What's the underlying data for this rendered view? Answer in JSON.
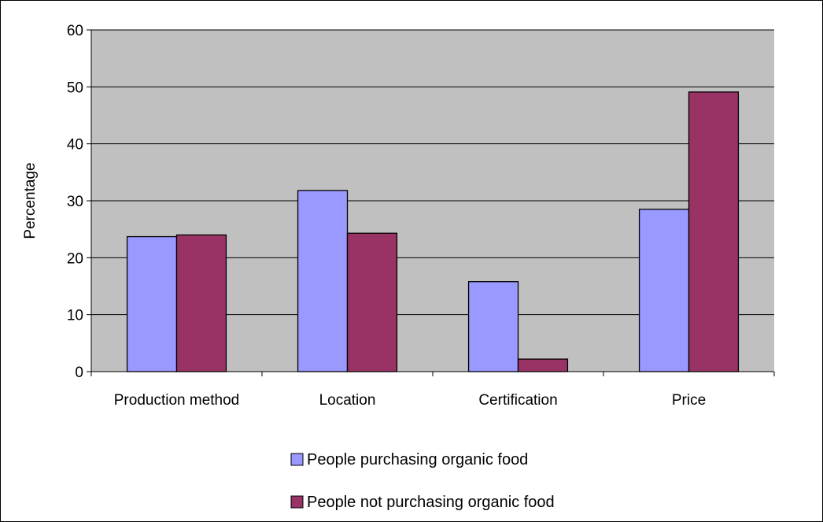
{
  "chart_data": {
    "type": "bar",
    "title": "",
    "xlabel": "",
    "ylabel": "Percentage",
    "ylim": [
      0,
      60
    ],
    "yticks": [
      0,
      10,
      20,
      30,
      40,
      50,
      60
    ],
    "grid": true,
    "legend_position": "bottom",
    "categories": [
      "Production method",
      "Location",
      "Certification",
      "Price"
    ],
    "series": [
      {
        "name": "People purchasing organic food",
        "color": "#9999ff",
        "values": [
          23.7,
          31.8,
          15.8,
          28.5
        ]
      },
      {
        "name": "People not purchasing organic food",
        "color": "#993366",
        "values": [
          24.0,
          24.3,
          2.2,
          49.1
        ]
      }
    ],
    "plot_background": "#c0c0c0"
  }
}
